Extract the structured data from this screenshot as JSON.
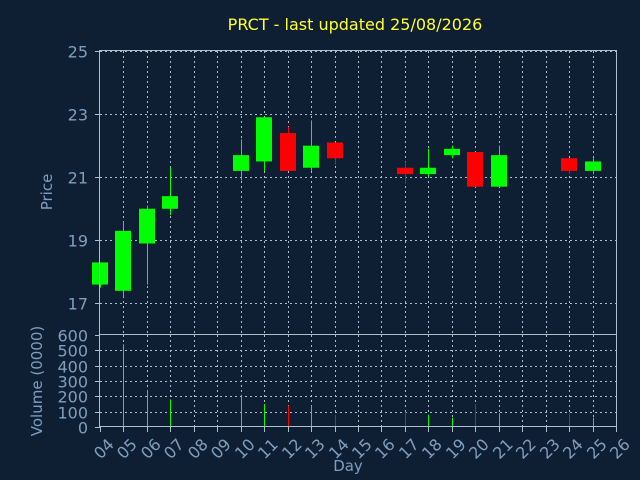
{
  "chart_data": {
    "type": "candlestick",
    "title": "PRCT - last updated 25/08/2026",
    "price_panel": {
      "ylabel": "Price",
      "ylim": [
        16,
        25
      ],
      "yticks": [
        17,
        19,
        21,
        23,
        25
      ],
      "grid": true
    },
    "volume_panel": {
      "ylabel": "Volume (0000)",
      "ylim": [
        0,
        600
      ],
      "yticks": [
        0,
        100,
        200,
        300,
        400,
        500,
        600
      ],
      "grid": true
    },
    "xlabel": "Day",
    "x_ticks": [
      "04",
      "05",
      "06",
      "07",
      "08",
      "09",
      "10",
      "11",
      "12",
      "13",
      "14",
      "15",
      "16",
      "17",
      "18",
      "19",
      "20",
      "21",
      "22",
      "23",
      "24",
      "25",
      "26"
    ],
    "colors": {
      "up": "#00ff00",
      "down": "#ff0000"
    },
    "candles": [
      {
        "day": "04",
        "open": 17.6,
        "high": 18.3,
        "low": 17.5,
        "close": 18.3,
        "volume": 0
      },
      {
        "day": "05",
        "open": 17.4,
        "high": 19.6,
        "low": 17.2,
        "close": 19.3,
        "volume": 540
      },
      {
        "day": "06",
        "open": 18.9,
        "high": 20.1,
        "low": 17.6,
        "close": 20.0,
        "volume": 240
      },
      {
        "day": "07",
        "open": 20.0,
        "high": 21.3,
        "low": 19.8,
        "close": 20.4,
        "volume": 180
      },
      {
        "day": "10",
        "open": 21.2,
        "high": 22.2,
        "low": 20.9,
        "close": 21.7,
        "volume": 210
      },
      {
        "day": "11",
        "open": 21.5,
        "high": 22.9,
        "low": 21.2,
        "close": 22.9,
        "volume": 150
      },
      {
        "day": "12",
        "open": 22.4,
        "high": 22.6,
        "low": 21.2,
        "close": 21.2,
        "volume": 140
      },
      {
        "day": "13",
        "open": 21.3,
        "high": 22.8,
        "low": 21.2,
        "close": 22.0,
        "volume": 140
      },
      {
        "day": "14",
        "open": 22.1,
        "high": 22.1,
        "low": 21.4,
        "close": 21.6,
        "volume": 80
      },
      {
        "day": "17",
        "open": 21.3,
        "high": 21.5,
        "low": 20.8,
        "close": 21.1,
        "volume": 100
      },
      {
        "day": "18",
        "open": 21.1,
        "high": 21.9,
        "low": 21.0,
        "close": 21.3,
        "volume": 80
      },
      {
        "day": "19",
        "open": 21.7,
        "high": 22.0,
        "low": 21.6,
        "close": 21.9,
        "volume": 60
      },
      {
        "day": "20",
        "open": 21.8,
        "high": 21.8,
        "low": 20.7,
        "close": 20.7,
        "volume": 150
      },
      {
        "day": "21",
        "open": 20.7,
        "high": 22.0,
        "low": 20.7,
        "close": 21.7,
        "volume": 90
      },
      {
        "day": "24",
        "open": 21.6,
        "high": 21.6,
        "low": 21.1,
        "close": 21.2,
        "volume": 90
      },
      {
        "day": "25",
        "open": 21.2,
        "high": 21.6,
        "low": 21.1,
        "close": 21.5,
        "volume": 60
      }
    ]
  }
}
